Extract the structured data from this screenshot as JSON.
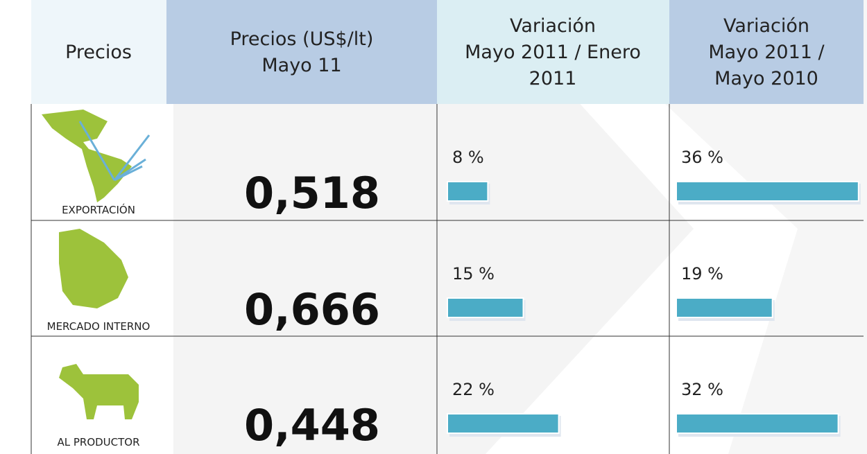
{
  "table": {
    "header": [
      "Precios",
      "Precios (US$/lt)\nMayo 11",
      "Variación\nMayo 2011 / Enero\n2011",
      "Variación\nMayo 2011 /\nMayo 2010"
    ],
    "rows": [
      {
        "label": "EXPORTACIÓN",
        "price": "0,518",
        "var1": {
          "value": 8,
          "label": "8 %"
        },
        "var2": {
          "value": 36,
          "label": "36 %"
        }
      },
      {
        "label": "MERCADO INTERNO",
        "price": "0,666",
        "var1": {
          "value": 15,
          "label": "15 %"
        },
        "var2": {
          "value": 19,
          "label": "19 %"
        }
      },
      {
        "label": "AL PRODUCTOR",
        "price": "0,448",
        "var1": {
          "value": 22,
          "label": "22 %"
        },
        "var2": {
          "value": 32,
          "label": "32 %"
        }
      }
    ]
  }
}
